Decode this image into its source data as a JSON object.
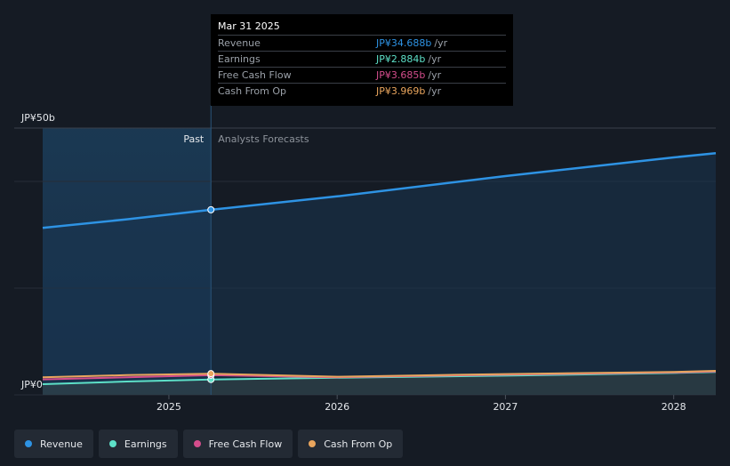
{
  "tooltip": {
    "date": "Mar 31 2025",
    "rows": [
      {
        "label": "Revenue",
        "value": "JP¥34.688b",
        "unit": "/yr",
        "color": "#2e93e4"
      },
      {
        "label": "Earnings",
        "value": "JP¥2.884b",
        "unit": "/yr",
        "color": "#5de0c8"
      },
      {
        "label": "Free Cash Flow",
        "value": "JP¥3.685b",
        "unit": "/yr",
        "color": "#d44d8c"
      },
      {
        "label": "Cash From Op",
        "value": "JP¥3.969b",
        "unit": "/yr",
        "color": "#e9a55d"
      }
    ]
  },
  "labels": {
    "past": "Past",
    "forecast": "Analysts Forecasts"
  },
  "legend": [
    {
      "label": "Revenue",
      "color": "#2e93e4"
    },
    {
      "label": "Earnings",
      "color": "#5de0c8"
    },
    {
      "label": "Free Cash Flow",
      "color": "#d44d8c"
    },
    {
      "label": "Cash From Op",
      "color": "#e9a55d"
    }
  ],
  "chart_data": {
    "type": "line",
    "y_tick_labels": [
      "JP¥50b",
      "JP¥0"
    ],
    "ylim": [
      0,
      50
    ],
    "x_ticks": [
      2025,
      2026,
      2027,
      2028
    ],
    "xlim": [
      2024.25,
      2028.25
    ],
    "past_end": 2025.25,
    "series": [
      {
        "name": "Revenue",
        "color": "#2e93e4",
        "points": [
          [
            2024.25,
            31.3
          ],
          [
            2024.75,
            32.9
          ],
          [
            2025.25,
            34.688
          ],
          [
            2026,
            37.2
          ],
          [
            2027,
            41.0
          ],
          [
            2028,
            44.5
          ],
          [
            2028.25,
            45.3
          ]
        ]
      },
      {
        "name": "Earnings",
        "color": "#5de0c8",
        "points": [
          [
            2024.25,
            2.0
          ],
          [
            2024.75,
            2.5
          ],
          [
            2025.25,
            2.884
          ],
          [
            2026,
            3.2
          ],
          [
            2027,
            3.6
          ],
          [
            2028,
            4.1
          ],
          [
            2028.25,
            4.3
          ]
        ]
      },
      {
        "name": "Free Cash Flow",
        "color": "#d44d8c",
        "points": [
          [
            2024.25,
            2.9
          ],
          [
            2024.75,
            3.3
          ],
          [
            2025.25,
            3.685
          ],
          [
            2026,
            3.3
          ],
          [
            2027,
            3.8
          ],
          [
            2028,
            4.2
          ],
          [
            2028.25,
            4.4
          ]
        ]
      },
      {
        "name": "Cash From Op",
        "color": "#e9a55d",
        "points": [
          [
            2024.25,
            3.3
          ],
          [
            2024.75,
            3.7
          ],
          [
            2025.25,
            3.969
          ],
          [
            2026,
            3.4
          ],
          [
            2027,
            3.9
          ],
          [
            2028,
            4.3
          ],
          [
            2028.25,
            4.5
          ]
        ]
      }
    ]
  }
}
